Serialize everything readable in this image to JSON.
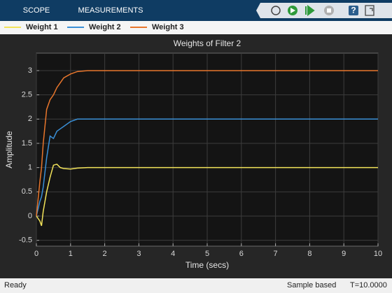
{
  "toolbar": {
    "tabs": [
      "SCOPE",
      "MEASUREMENTS"
    ],
    "help": "?"
  },
  "chart_data": {
    "type": "line",
    "title": "Weights of Filter 2",
    "xlabel": "Time (secs)",
    "ylabel": "Amplitude",
    "x": [
      0,
      0.1,
      0.15,
      0.2,
      0.3,
      0.4,
      0.5,
      0.6,
      0.7,
      0.8,
      1,
      1.2,
      1.5,
      2,
      10
    ],
    "series": [
      {
        "name": "Weight 1",
        "color": "#f2e35a",
        "values": [
          0,
          -0.1,
          -0.2,
          0.1,
          0.5,
          0.8,
          1.05,
          1.07,
          1.0,
          0.98,
          0.97,
          0.99,
          1.0,
          1.0,
          1.0
        ]
      },
      {
        "name": "Weight 2",
        "color": "#3a8fd6",
        "values": [
          0,
          0.3,
          0.4,
          0.6,
          1.2,
          1.65,
          1.6,
          1.75,
          1.8,
          1.85,
          1.95,
          2.0,
          2.0,
          2.0,
          2.0
        ]
      },
      {
        "name": "Weight 3",
        "color": "#e8762c",
        "values": [
          0,
          0.7,
          1.0,
          1.5,
          2.2,
          2.4,
          2.5,
          2.65,
          2.75,
          2.85,
          2.93,
          2.98,
          3.0,
          3.0,
          3.0
        ]
      }
    ],
    "xlim": [
      0,
      10
    ],
    "xticks": [
      0,
      1,
      2,
      3,
      4,
      5,
      6,
      7,
      8,
      9,
      10
    ],
    "ylim": [
      -0.62,
      3.36
    ],
    "yticks": [
      -0.5,
      0,
      0.5,
      1,
      1.5,
      2,
      2.5,
      3
    ],
    "grid": true
  },
  "status_bar": {
    "status": "Ready",
    "mode": "Sample based",
    "time": "T=10.0000"
  }
}
